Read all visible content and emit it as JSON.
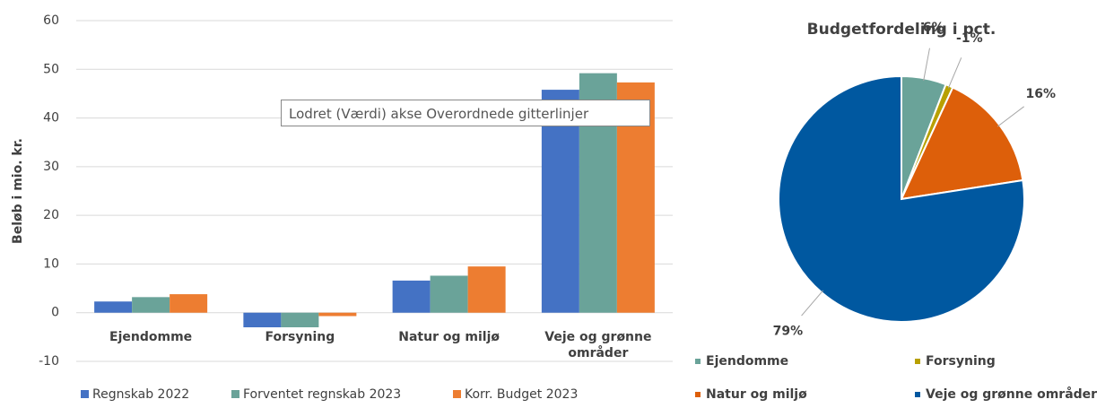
{
  "bar_chart": {
    "type": "bar",
    "y_label": "Beløb i mio. kr.",
    "categories": [
      "Ejendomme",
      "Forsyning",
      "Natur og miljø",
      "Veje og grønne områder"
    ],
    "series": [
      {
        "name": "Regnskab 2022",
        "color": "#4472c4",
        "values": [
          2.3,
          -3,
          6.6,
          45.8
        ]
      },
      {
        "name": "Forventet regnskab 2023",
        "color": "#6aa399",
        "values": [
          3.2,
          -3,
          7.6,
          49.2
        ]
      },
      {
        "name": "Korr. Budget 2023",
        "color": "#ed7d31",
        "values": [
          3.8,
          -0.7,
          9.5,
          47.3
        ]
      }
    ],
    "ylim": [
      -10,
      60
    ],
    "yticks": [
      -10,
      0,
      10,
      20,
      30,
      40,
      50,
      60
    ],
    "grid": true,
    "tooltip": "Lodret (Værdi) akse Overordnede gitterlinjer"
  },
  "pie_chart": {
    "type": "pie",
    "title": "Budgetfordeling i pct.",
    "categories": [
      "Ejendomme",
      "Forsyning",
      "Natur og miljø",
      "Veje og grønne områder"
    ],
    "values": [
      6,
      -1,
      16,
      79
    ],
    "value_labels": [
      "6%",
      "-1%",
      "16%",
      "79%"
    ],
    "colors": [
      "#6aa399",
      "#b8a000",
      "#dd5f0a",
      "#0058a0"
    ]
  }
}
